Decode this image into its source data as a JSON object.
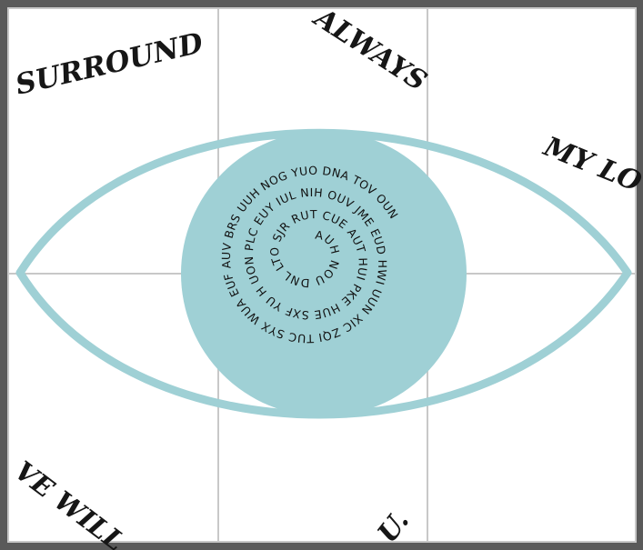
{
  "colors": {
    "frame": "#5a5a5a",
    "paper": "#ffffff",
    "grid_line": "#c8c8c8",
    "eye": "#9fd0d5",
    "ink": "#161616"
  },
  "corner_words": {
    "top_left": "SURROUND",
    "top_center": "ALWAYS",
    "top_right": "MY LO",
    "bottom_left": "VE WILL",
    "bottom_center": "U."
  },
  "spiral_text": "AUH NOU DNL LTO SJR RUT CUE AUT HUI PKE HUE SXF YU H UON PLC EUY IUL NIH OUV JME EUD HWI UUN XIC ZQI TUC SYX WUA EUF AUV BRS UUH NOG YUO DNA TOV OUN"
}
